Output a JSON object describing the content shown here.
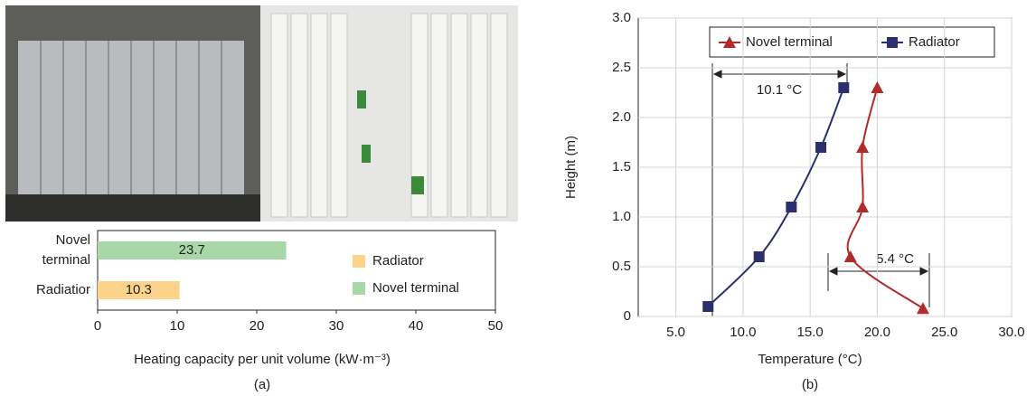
{
  "chart_data": [
    {
      "type": "bar",
      "orientation": "horizontal",
      "categories": [
        "Novel terminal",
        "Radiatior"
      ],
      "series": [
        {
          "name": "Radiator",
          "color": "#fcd38a",
          "values": [
            null,
            10.3
          ]
        },
        {
          "name": "Novel terminal",
          "color": "#a9d8a8",
          "values": [
            23.7,
            null
          ]
        }
      ],
      "xlim": [
        0,
        50
      ],
      "xticks": [
        0,
        10,
        20,
        30,
        40,
        50
      ],
      "x_label": "Heating capacity per unit volume (kW·m⁻³)",
      "caption": "(a)"
    },
    {
      "type": "line",
      "series": [
        {
          "name": "Novel terminal",
          "color": "#b22a2a",
          "marker": "triangle",
          "x": [
            23.4,
            18.0,
            18.9,
            18.9,
            20.0
          ],
          "values": [
            0.08,
            0.6,
            1.1,
            1.7,
            2.3
          ]
        },
        {
          "name": "Radiator",
          "color": "#2b2f6e",
          "marker": "square",
          "x": [
            7.4,
            11.2,
            13.6,
            15.8,
            17.5
          ],
          "values": [
            0.1,
            0.6,
            1.1,
            1.7,
            2.3
          ]
        }
      ],
      "xlim": [
        2.2,
        30.0
      ],
      "xticks": [
        {
          "value": 5,
          "label": "5.0"
        },
        {
          "value": 10,
          "label": "10.0"
        },
        {
          "value": 15,
          "label": "15.0"
        },
        {
          "value": 20,
          "label": "20.0"
        },
        {
          "value": 25,
          "label": "25.0"
        },
        {
          "value": 30,
          "label": "30.0"
        }
      ],
      "ylim": [
        0,
        3.0
      ],
      "yticks": [
        0,
        0.5,
        {
          "value": 1,
          "label": "1.0"
        },
        1.5,
        {
          "value": 2,
          "label": "2.0"
        },
        2.5,
        {
          "value": 3,
          "label": "3.0"
        }
      ],
      "grid": true,
      "legend": "top",
      "annotations": [
        "10.1 °C",
        "5.4 °C"
      ],
      "x_label": "Temperature (°C)",
      "y_label": "Height (m)",
      "caption": "(b)"
    }
  ]
}
